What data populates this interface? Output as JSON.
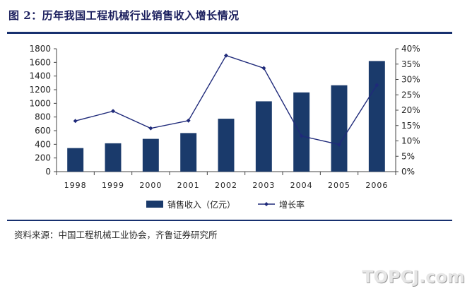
{
  "figure": {
    "title": "图 2：历年我国工程机械行业销售收入增长情况",
    "source": "资料来源：中国工程机械工业协会，齐鲁证券研究所",
    "watermark": "TOPCJ.com"
  },
  "chart_data": {
    "type": "bar",
    "categories": [
      "1998",
      "1999",
      "2000",
      "2001",
      "2002",
      "2003",
      "2004",
      "2005",
      "2006"
    ],
    "series": [
      {
        "name": "销售收入（亿元）",
        "type": "bar",
        "axis": "left",
        "color": "#1a3a6b",
        "values": [
          345,
          415,
          480,
          565,
          775,
          1030,
          1160,
          1265,
          1620
        ]
      },
      {
        "name": "增长率",
        "type": "line",
        "axis": "right",
        "color": "#1f2a7a",
        "values": [
          0.165,
          0.197,
          0.141,
          0.166,
          0.378,
          0.337,
          0.116,
          0.088,
          0.282
        ]
      }
    ],
    "y_left": {
      "min": 0,
      "max": 1800,
      "ticks": [
        0,
        200,
        400,
        600,
        800,
        1000,
        1200,
        1400,
        1600,
        1800
      ]
    },
    "y_right": {
      "min": 0,
      "max": 0.4,
      "ticks": [
        "0%",
        "5%",
        "10%",
        "15%",
        "20%",
        "25%",
        "30%",
        "35%",
        "40%"
      ]
    },
    "grid": false,
    "legend_position": "bottom-center"
  }
}
